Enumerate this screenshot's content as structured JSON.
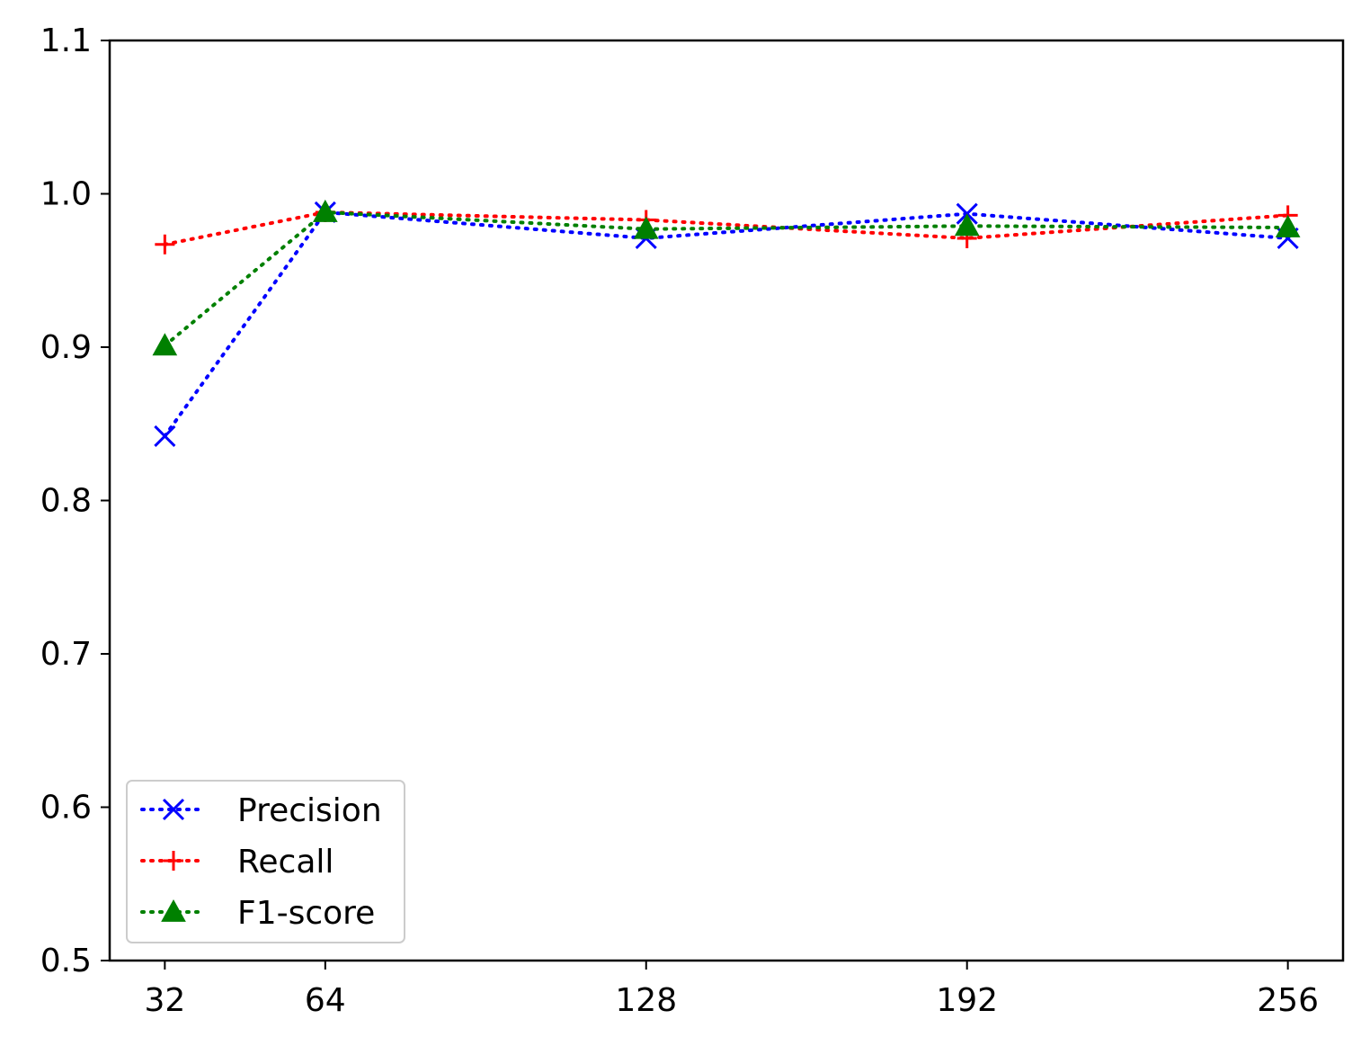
{
  "chart_data": {
    "type": "line",
    "x": [
      32,
      64,
      128,
      192,
      256
    ],
    "xticks": [
      "32",
      "64",
      "128",
      "192",
      "256"
    ],
    "xlim": [
      21,
      267
    ],
    "ylim": [
      0.5,
      1.1
    ],
    "yticks": [
      "0.5",
      "0.6",
      "0.7",
      "0.8",
      "0.9",
      "1.0",
      "1.1"
    ],
    "grid": false,
    "legend_position": "lower-left",
    "series": [
      {
        "name": "Precision",
        "color": "#0000ff",
        "marker": "x",
        "values": [
          0.842,
          0.988,
          0.971,
          0.987,
          0.971
        ]
      },
      {
        "name": "Recall",
        "color": "#ff0000",
        "marker": "plus",
        "values": [
          0.967,
          0.988,
          0.983,
          0.971,
          0.986
        ]
      },
      {
        "name": "F1-score",
        "color": "#008000",
        "marker": "triangle",
        "values": [
          0.901,
          0.988,
          0.977,
          0.979,
          0.978
        ]
      }
    ]
  }
}
